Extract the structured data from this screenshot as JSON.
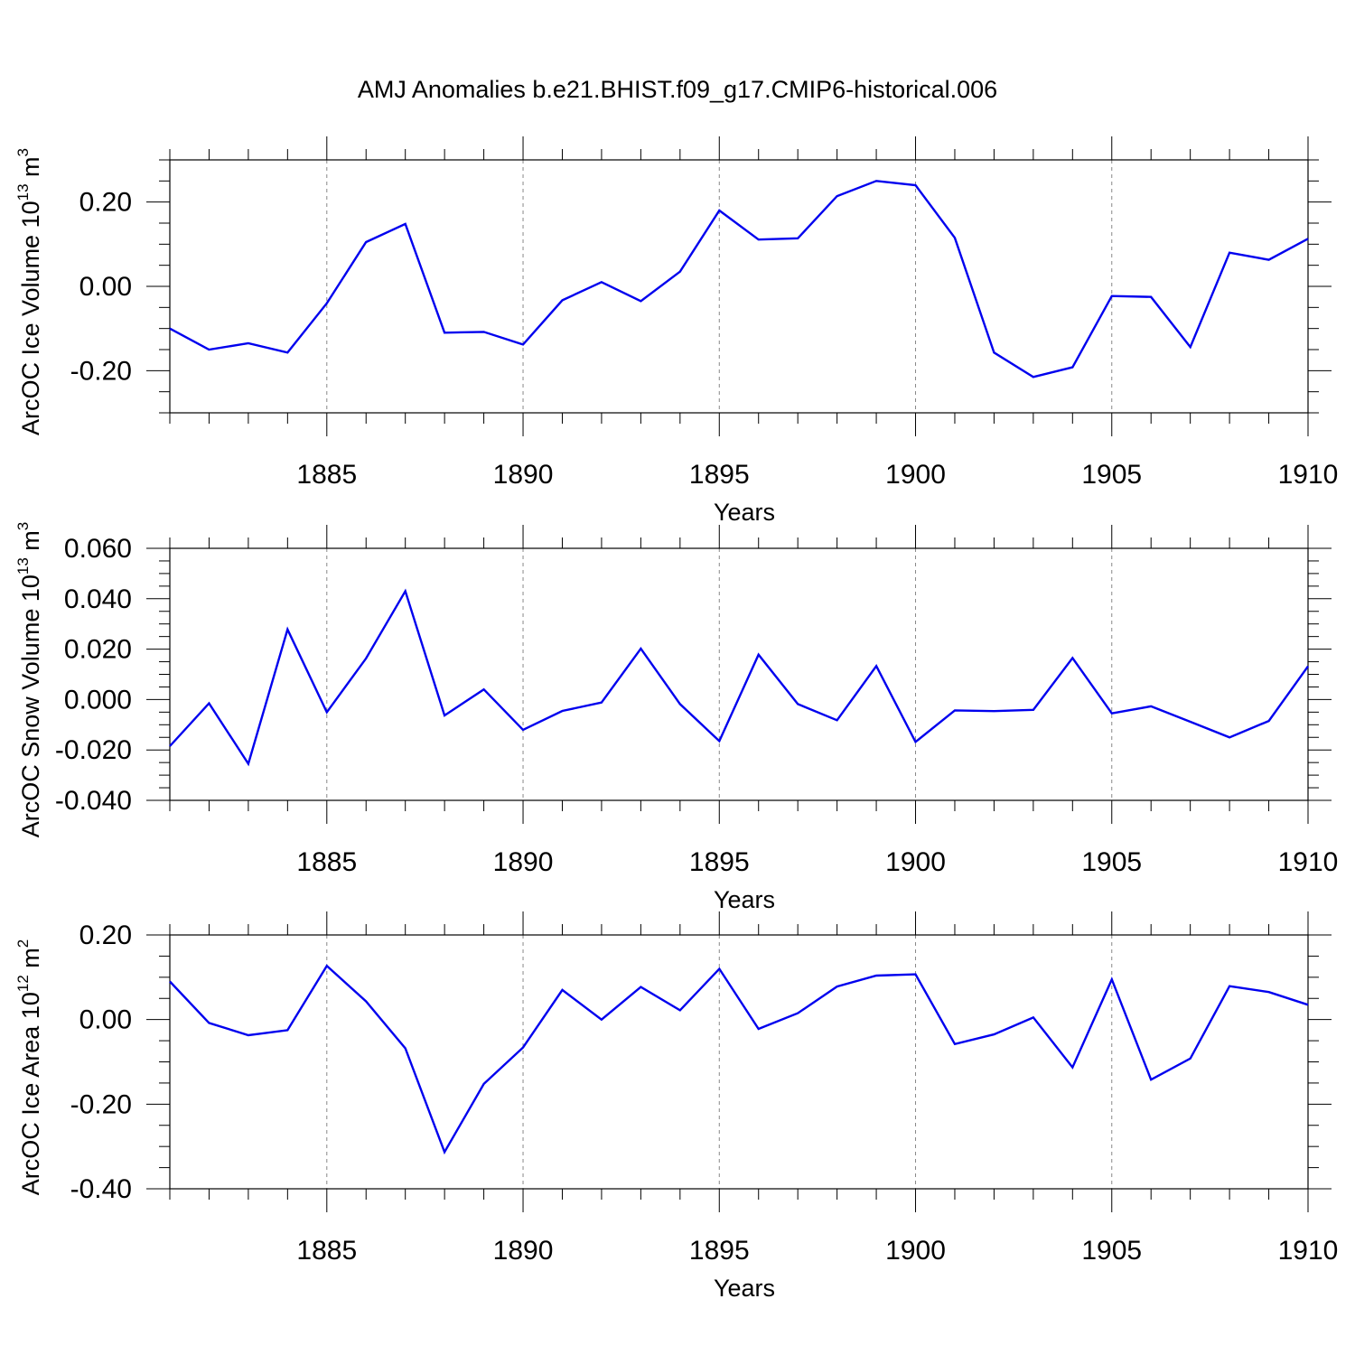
{
  "title": "AMJ Anomalies b.e21.BHIST.f09_g17.CMIP6-historical.006",
  "colors": {
    "line": "#0000ee",
    "axis": "#000000",
    "grid": "#888888"
  },
  "chart_data": [
    {
      "type": "line",
      "name": "ice-volume",
      "ylabel": "ArcOC Ice Volume 10",
      "ylabel_exp": "13",
      "ylabel_unit": " m",
      "ylabel_unit_exp": "3",
      "xlabel": "Years",
      "xlim": [
        1881,
        1910
      ],
      "ylim": [
        -0.3,
        0.3
      ],
      "yticks": [
        -0.2,
        0.0,
        0.2
      ],
      "ytick_labels": [
        "-0.20",
        "0.00",
        "0.20"
      ],
      "xticks": [
        1885,
        1890,
        1895,
        1900,
        1905,
        1910
      ],
      "xtick_labels": [
        "1885",
        "1890",
        "1895",
        "1900",
        "1905",
        "1910"
      ],
      "x": [
        1881,
        1882,
        1883,
        1884,
        1885,
        1886,
        1887,
        1888,
        1889,
        1890,
        1891,
        1892,
        1893,
        1894,
        1895,
        1896,
        1897,
        1898,
        1899,
        1900,
        1901,
        1902,
        1903,
        1904,
        1905,
        1906,
        1907,
        1908,
        1909,
        1910
      ],
      "y": [
        -0.1,
        -0.15,
        -0.135,
        -0.157,
        -0.04,
        0.105,
        0.148,
        -0.11,
        -0.108,
        -0.138,
        -0.033,
        0.01,
        -0.035,
        0.035,
        0.18,
        0.111,
        0.114,
        0.214,
        0.25,
        0.24,
        0.115,
        -0.157,
        -0.215,
        -0.192,
        -0.023,
        -0.025,
        -0.144,
        0.08,
        0.063,
        0.113
      ]
    },
    {
      "type": "line",
      "name": "snow-volume",
      "ylabel": "ArcOC Snow Volume 10",
      "ylabel_exp": "13",
      "ylabel_unit": " m",
      "ylabel_unit_exp": "3",
      "xlabel": "Years",
      "xlim": [
        1881,
        1910
      ],
      "ylim": [
        -0.04,
        0.06
      ],
      "yticks": [
        -0.04,
        -0.02,
        0.0,
        0.02,
        0.04,
        0.06
      ],
      "ytick_labels": [
        "-0.040",
        "-0.020",
        "0.000",
        "0.020",
        "0.040",
        "0.060"
      ],
      "xticks": [
        1885,
        1890,
        1895,
        1900,
        1905,
        1910
      ],
      "xtick_labels": [
        "1885",
        "1890",
        "1895",
        "1900",
        "1905",
        "1910"
      ],
      "x": [
        1881,
        1882,
        1883,
        1884,
        1885,
        1886,
        1887,
        1888,
        1889,
        1890,
        1891,
        1892,
        1893,
        1894,
        1895,
        1896,
        1897,
        1898,
        1899,
        1900,
        1901,
        1902,
        1903,
        1904,
        1905,
        1906,
        1907,
        1908,
        1909,
        1910
      ],
      "y": [
        -0.0185,
        -0.0015,
        -0.0255,
        0.0278,
        -0.005,
        0.0163,
        0.043,
        -0.0063,
        0.004,
        -0.012,
        -0.0045,
        -0.0012,
        0.0202,
        -0.0018,
        -0.0165,
        0.0178,
        -0.0018,
        -0.0082,
        0.0133,
        -0.0168,
        -0.0043,
        -0.0046,
        -0.0041,
        0.0165,
        -0.0055,
        -0.0027,
        -0.0088,
        -0.015,
        -0.0085,
        0.0132
      ]
    },
    {
      "type": "line",
      "name": "ice-area",
      "ylabel": "ArcOC Ice Area 10",
      "ylabel_exp": "12",
      "ylabel_unit": " m",
      "ylabel_unit_exp": "2",
      "xlabel": "Years",
      "xlim": [
        1881,
        1910
      ],
      "ylim": [
        -0.4,
        0.2
      ],
      "yticks": [
        -0.4,
        -0.2,
        0.0,
        0.2
      ],
      "ytick_labels": [
        "-0.40",
        "-0.20",
        "0.00",
        "0.20"
      ],
      "xticks": [
        1885,
        1890,
        1895,
        1900,
        1905,
        1910
      ],
      "xtick_labels": [
        "1885",
        "1890",
        "1895",
        "1900",
        "1905",
        "1910"
      ],
      "x": [
        1881,
        1882,
        1883,
        1884,
        1885,
        1886,
        1887,
        1888,
        1889,
        1890,
        1891,
        1892,
        1893,
        1894,
        1895,
        1896,
        1897,
        1898,
        1899,
        1900,
        1901,
        1902,
        1903,
        1904,
        1905,
        1906,
        1907,
        1908,
        1909,
        1910
      ],
      "y": [
        0.09,
        -0.008,
        -0.037,
        -0.025,
        0.127,
        0.043,
        -0.068,
        -0.313,
        -0.152,
        -0.066,
        0.07,
        0.0,
        0.077,
        0.022,
        0.12,
        -0.022,
        0.015,
        0.078,
        0.104,
        0.107,
        -0.058,
        -0.035,
        0.005,
        -0.113,
        0.095,
        -0.142,
        -0.092,
        0.079,
        0.065,
        0.035
      ]
    }
  ]
}
